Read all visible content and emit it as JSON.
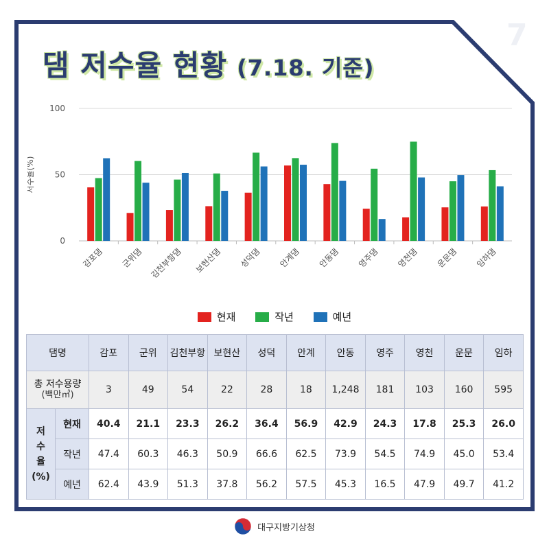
{
  "page_number": "7",
  "title": "댐 저수율 현황",
  "subtitle": "(7.18. 기준)",
  "colors": {
    "current": "#e3231f",
    "last_year": "#27ad48",
    "normal": "#1f72b8",
    "frame": "#2b3c70"
  },
  "chart_data": {
    "type": "bar",
    "ylabel": "저수율(%)",
    "ylim": [
      0,
      100
    ],
    "yticks": [
      "0",
      "50",
      "100"
    ],
    "grid": true,
    "legend_position": "bottom",
    "categories": [
      "감포댐",
      "군위댐",
      "김천부항댐",
      "보현산댐",
      "성덕댐",
      "안계댐",
      "안동댐",
      "영주댐",
      "영천댐",
      "운문댐",
      "임하댐"
    ],
    "series": [
      {
        "name": "현재",
        "color": "#e3231f",
        "values": [
          40.4,
          21.1,
          23.3,
          26.2,
          36.4,
          56.9,
          42.9,
          24.3,
          17.8,
          25.3,
          26.0
        ]
      },
      {
        "name": "작년",
        "color": "#27ad48",
        "values": [
          47.4,
          60.3,
          46.3,
          50.9,
          66.6,
          62.5,
          73.9,
          54.5,
          74.9,
          45.0,
          53.4
        ]
      },
      {
        "name": "예년",
        "color": "#1f72b8",
        "values": [
          62.4,
          43.9,
          51.3,
          37.8,
          56.2,
          57.5,
          45.3,
          16.5,
          47.9,
          49.7,
          41.2
        ]
      }
    ]
  },
  "table": {
    "dam_header": "댐명",
    "dams": [
      "감포",
      "군위",
      "김천부항",
      "보현산",
      "성덕",
      "안계",
      "안동",
      "영주",
      "영천",
      "운문",
      "임하"
    ],
    "capacity_label": "총 저수용량",
    "capacity_unit": "(백만㎥)",
    "capacity": [
      "3",
      "49",
      "54",
      "22",
      "28",
      "18",
      "1,248",
      "181",
      "103",
      "160",
      "595"
    ],
    "rate_label_lines": [
      "저",
      "수",
      "율",
      "(%)"
    ],
    "current_label": "현재",
    "current": [
      "40.4",
      "21.1",
      "23.3",
      "26.2",
      "36.4",
      "56.9",
      "42.9",
      "24.3",
      "17.8",
      "25.3",
      "26.0"
    ],
    "last_year_label": "작년",
    "last_year": [
      "47.4",
      "60.3",
      "46.3",
      "50.9",
      "66.6",
      "62.5",
      "73.9",
      "54.5",
      "74.9",
      "45.0",
      "53.4"
    ],
    "normal_label": "예년",
    "normal": [
      "62.4",
      "43.9",
      "51.3",
      "37.8",
      "56.2",
      "57.5",
      "45.3",
      "16.5",
      "47.9",
      "49.7",
      "41.2"
    ]
  },
  "footer": {
    "org": "대구지방기상청",
    "logo_icon": "taegeuk-logo-icon"
  }
}
